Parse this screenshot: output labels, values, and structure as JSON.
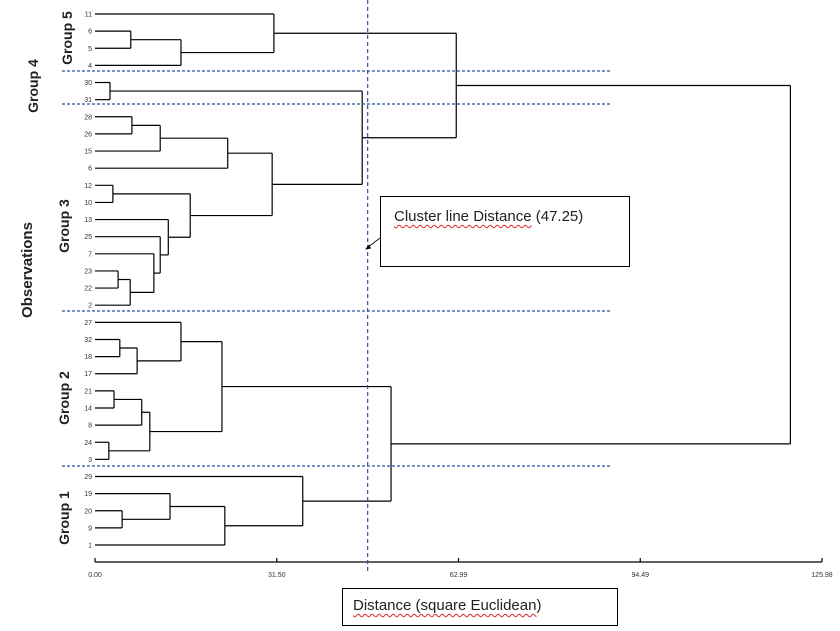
{
  "ylabel": "Observations",
  "groups": [
    "Group 5",
    "Group 4",
    "Group 3",
    "Group 2",
    "Group 1"
  ],
  "annotation": {
    "underlined": "Cluster line Distance",
    "rest": " (47.25)"
  },
  "xlabel": {
    "underlined": "Distance (square Euclidean",
    "rest": ")"
  },
  "cut_distance": 47.25,
  "axis": {
    "min": 0,
    "max": 125.98,
    "ticks": [
      "0.00",
      "31.50",
      "62.99",
      "94.49",
      "125.98"
    ]
  },
  "colors": {
    "line": "#000000",
    "dashed": "#2f4fa0"
  },
  "tree": {
    "d": 120.5,
    "c": [
      {
        "d": 62.6,
        "c": [
          {
            "d": 31.0,
            "c": [
              "11",
              {
                "d": 14.9,
                "c": [
                  {
                    "d": 6.2,
                    "c": [
                      "6",
                      "5"
                    ]
                  },
                  "4"
                ]
              }
            ]
          },
          {
            "d": 46.3,
            "c": [
              {
                "d": 2.6,
                "c": [
                  "30",
                  "31"
                ]
              },
              {
                "d": 30.7,
                "c": [
                  {
                    "d": 23.0,
                    "c": [
                      {
                        "d": 11.3,
                        "c": [
                          {
                            "d": 6.4,
                            "c": [
                              "28",
                              "26"
                            ]
                          },
                          "15"
                        ]
                      },
                      "6"
                    ]
                  },
                  {
                    "d": 16.5,
                    "c": [
                      {
                        "d": 3.1,
                        "c": [
                          "12",
                          "10"
                        ]
                      },
                      {
                        "d": 12.7,
                        "c": [
                          "13",
                          {
                            "d": 11.3,
                            "c": [
                              "25",
                              {
                                "d": 10.2,
                                "c": [
                                  "7",
                                  {
                                    "d": 6.1,
                                    "c": [
                                      {
                                        "d": 4.0,
                                        "c": [
                                          "23",
                                          "22"
                                        ]
                                      },
                                      "2"
                                    ]
                                  }
                                ]
                              }
                            ]
                          }
                        ]
                      }
                    ]
                  }
                ]
              }
            ]
          }
        ]
      },
      {
        "d": 51.3,
        "c": [
          {
            "d": 22.0,
            "c": [
              {
                "d": 14.9,
                "c": [
                  "27",
                  {
                    "d": 7.3,
                    "c": [
                      {
                        "d": 4.3,
                        "c": [
                          "32",
                          "18"
                        ]
                      },
                      "17"
                    ]
                  }
                ]
              },
              {
                "d": 9.5,
                "c": [
                  {
                    "d": 8.1,
                    "c": [
                      {
                        "d": 3.3,
                        "c": [
                          "21",
                          "14"
                        ]
                      },
                      "8"
                    ]
                  },
                  {
                    "d": 2.4,
                    "c": [
                      "24",
                      "3"
                    ]
                  }
                ]
              }
            ]
          },
          {
            "d": 36.0,
            "c": [
              "29",
              {
                "d": 22.5,
                "c": [
                  {
                    "d": 13.0,
                    "c": [
                      "19",
                      {
                        "d": 4.7,
                        "c": [
                          "20",
                          "9"
                        ]
                      }
                    ]
                  },
                  "1"
                ]
              }
            ]
          }
        ]
      }
    ]
  }
}
